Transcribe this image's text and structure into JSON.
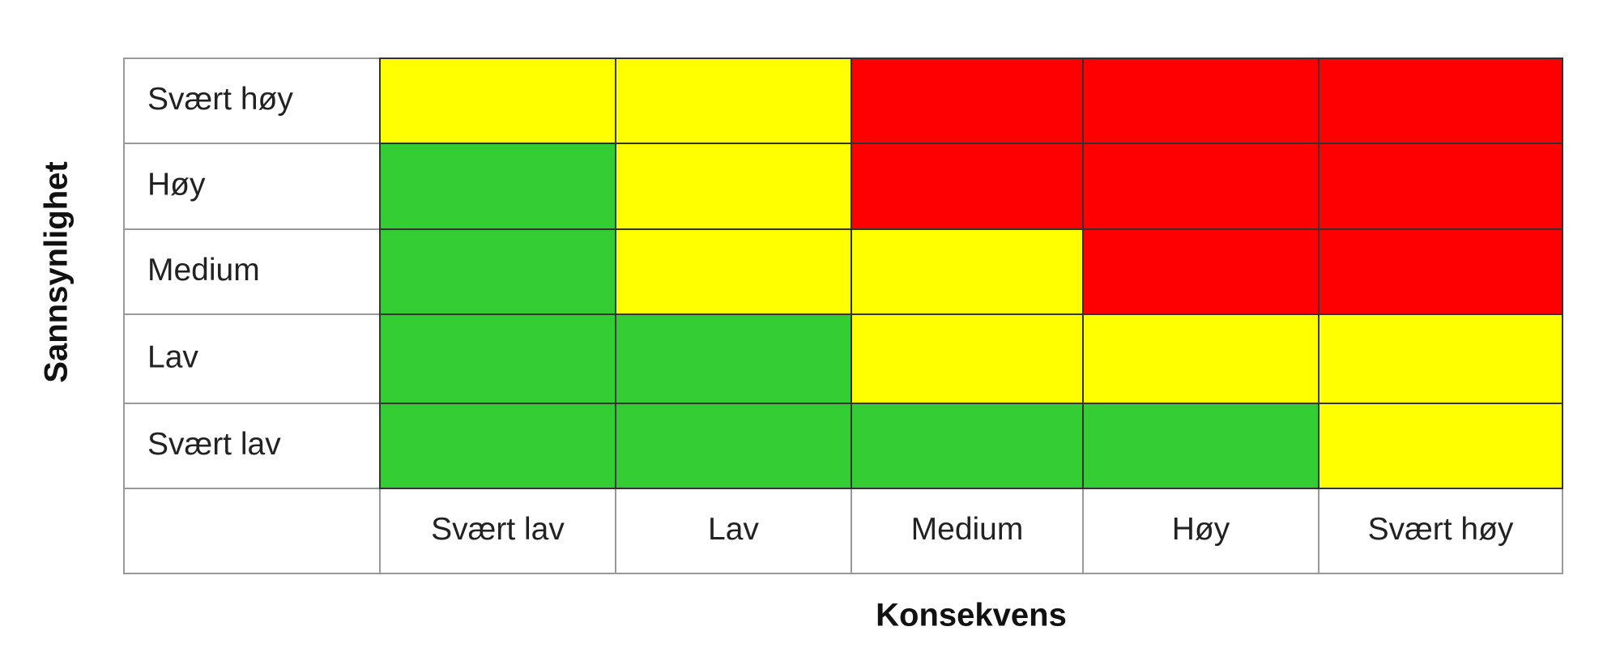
{
  "y_axis_title": "Sannsynlighet",
  "x_axis_title": "Konsekvens",
  "row_labels": [
    "Svært høy",
    "Høy",
    "Medium",
    "Lav",
    "Svært lav"
  ],
  "column_labels": [
    "Svært lav",
    "Lav",
    "Medium",
    "Høy",
    "Svært høy"
  ],
  "cells": [
    [
      "#ffff00",
      "#ffff00",
      "#ff0000",
      "#ff0000",
      "#ff0000"
    ],
    [
      "#33cc33",
      "#ffff00",
      "#ff0000",
      "#ff0000",
      "#ff0000"
    ],
    [
      "#33cc33",
      "#ffff00",
      "#ffff00",
      "#ff0000",
      "#ff0000"
    ],
    [
      "#33cc33",
      "#33cc33",
      "#ffff00",
      "#ffff00",
      "#ffff00"
    ],
    [
      "#33cc33",
      "#33cc33",
      "#33cc33",
      "#33cc33",
      "#ffff00"
    ]
  ]
}
